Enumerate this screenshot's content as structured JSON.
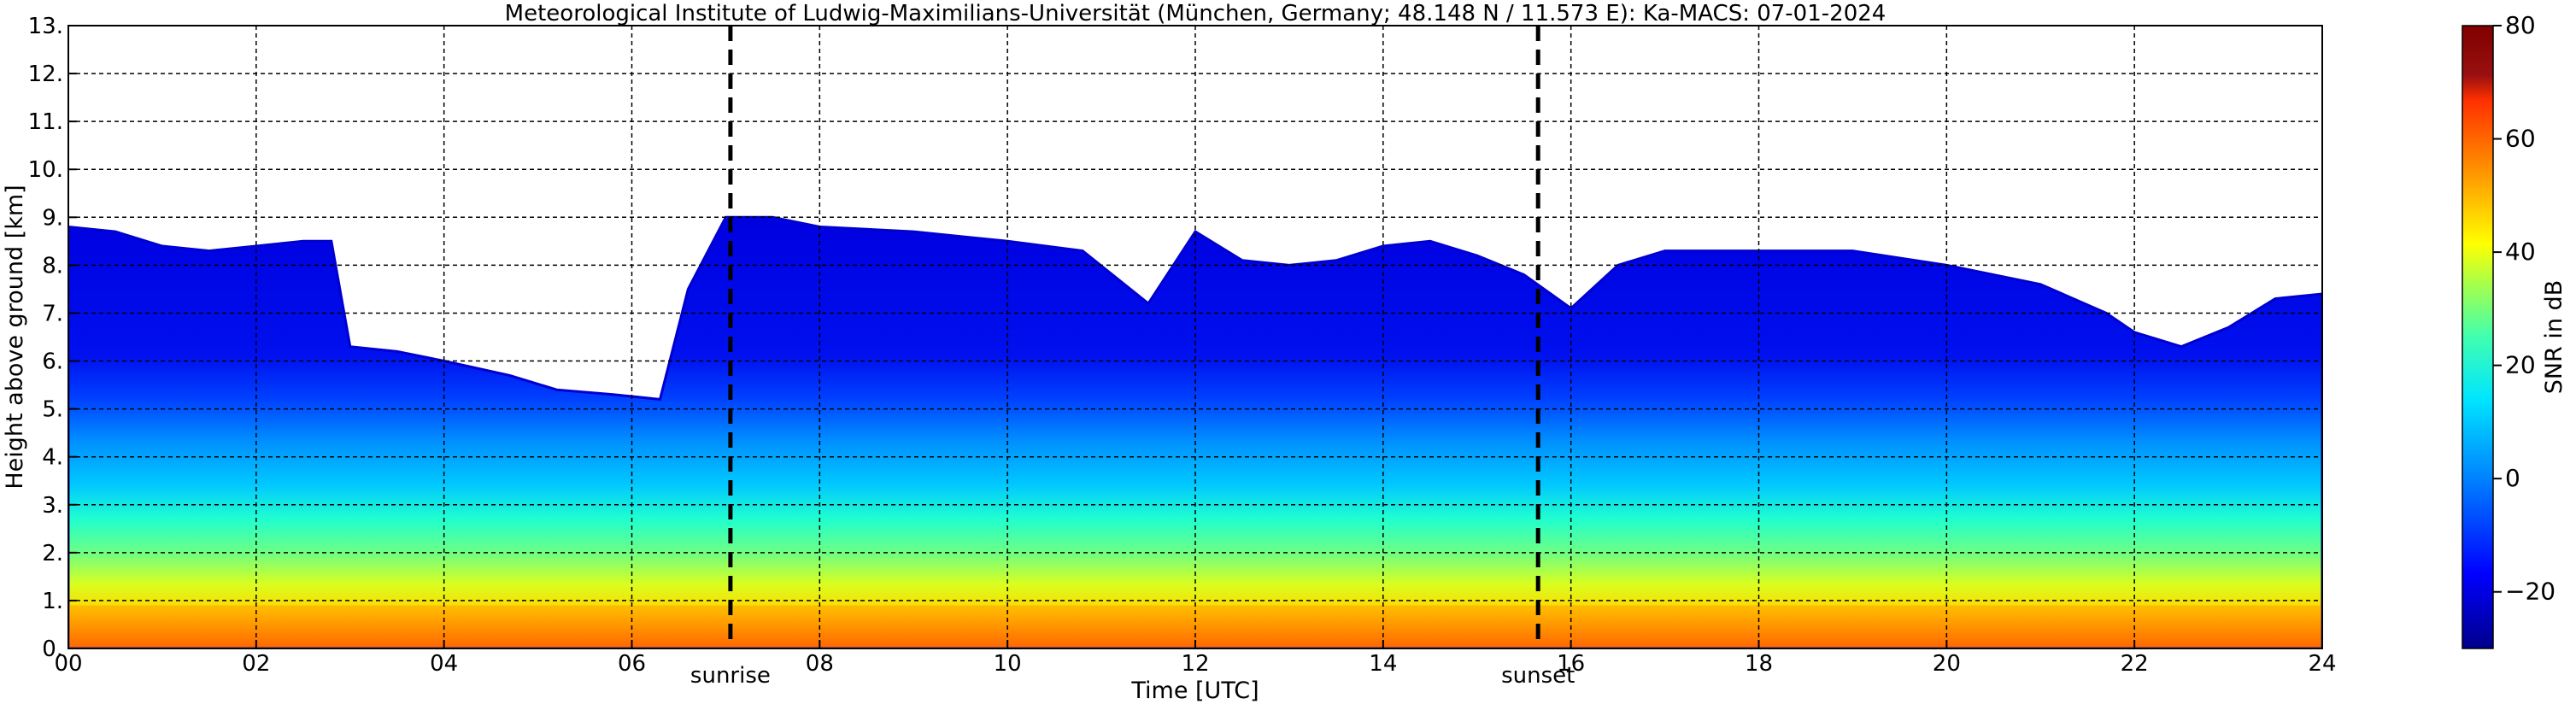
{
  "chart_data": {
    "type": "heatmap",
    "title": "Meteorological Institute of Ludwig-Maximilians-Universität (München, Germany; 48.148 N / 11.573 E):    Ka-MACS: 07-01-2024",
    "xlabel": "Time [UTC]",
    "ylabel": "Height above ground [km]",
    "xlim": [
      0,
      24
    ],
    "ylim": [
      0,
      13
    ],
    "x_ticks": [
      "00",
      "02",
      "04",
      "06",
      "08",
      "10",
      "12",
      "14",
      "16",
      "18",
      "20",
      "22",
      "24"
    ],
    "y_ticks": [
      "0.",
      "1.",
      "2.",
      "3.",
      "4.",
      "5.",
      "6.",
      "7.",
      "8.",
      "9.",
      "10.",
      "11.",
      "12.",
      "13."
    ],
    "grid": true,
    "colorbar": {
      "label": "SNR in dB",
      "range": [
        -30,
        80
      ],
      "ticks": [
        "−20",
        "0",
        "20",
        "40",
        "60",
        "80"
      ],
      "tick_values": [
        -20,
        0,
        20,
        40,
        60,
        80
      ],
      "colors": [
        "#00008b",
        "#0000ff",
        "#0080ff",
        "#00ffff",
        "#80ff80",
        "#ffff00",
        "#ff8000",
        "#ff0000",
        "#800000"
      ]
    },
    "annotations": [
      {
        "label": "sunrise",
        "x": 7.05
      },
      {
        "label": "sunset",
        "x": 15.65
      }
    ],
    "echo_top_km": {
      "x": [
        0,
        0.5,
        1,
        1.5,
        2,
        2.5,
        2.8,
        3.0,
        3.5,
        4,
        4.7,
        5.2,
        5.8,
        6.3,
        6.6,
        7.0,
        7.5,
        8,
        9,
        10,
        10.8,
        11.5,
        12,
        12.5,
        13,
        13.5,
        14,
        14.5,
        15,
        15.5,
        16,
        16.5,
        17,
        18,
        19,
        20,
        21,
        21.7,
        22,
        22.5,
        23,
        23.5,
        24
      ],
      "y": [
        8.8,
        8.7,
        8.4,
        8.3,
        8.4,
        8.5,
        8.5,
        6.3,
        6.2,
        6.0,
        5.7,
        5.4,
        5.3,
        5.2,
        7.5,
        9.0,
        9.0,
        8.8,
        8.7,
        8.5,
        8.3,
        7.2,
        8.7,
        8.1,
        8.0,
        8.1,
        8.4,
        8.5,
        8.2,
        7.8,
        7.1,
        8.0,
        8.3,
        8.3,
        8.3,
        8.0,
        7.6,
        7.0,
        6.6,
        6.3,
        6.7,
        7.3,
        7.4
      ]
    }
  }
}
